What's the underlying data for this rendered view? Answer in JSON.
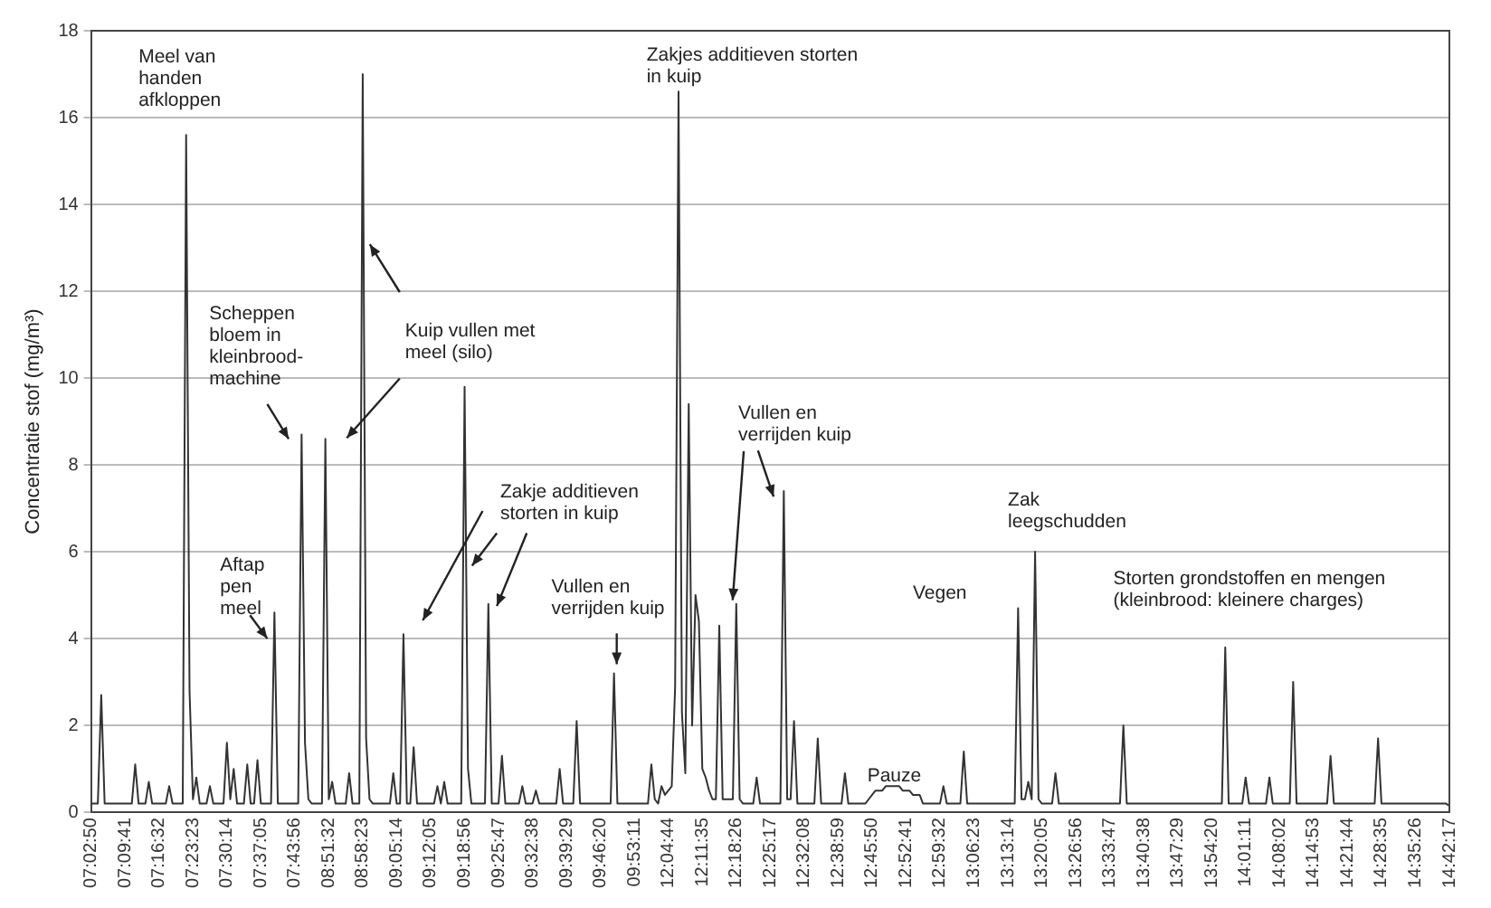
{
  "chart_data": {
    "type": "line",
    "ylabel": "Concentratie stof (mg/m³)",
    "ylim": [
      0,
      18
    ],
    "yticks": [
      0,
      2,
      4,
      6,
      8,
      10,
      12,
      14,
      16,
      18
    ],
    "categories": [
      "07:02:50",
      null,
      null,
      null,
      null,
      null,
      null,
      null,
      null,
      null,
      "07:09:41",
      null,
      null,
      null,
      null,
      null,
      null,
      null,
      null,
      null,
      "07:16:32",
      null,
      null,
      null,
      null,
      null,
      null,
      null,
      null,
      null,
      "07:23:23",
      null,
      null,
      null,
      null,
      null,
      null,
      null,
      null,
      null,
      "07:30:14",
      null,
      null,
      null,
      null,
      null,
      null,
      null,
      null,
      null,
      "07:37:05",
      null,
      null,
      null,
      null,
      null,
      null,
      null,
      null,
      null,
      "07:43:56",
      null,
      null,
      null,
      null,
      null,
      null,
      null,
      null,
      null,
      "08:51:32",
      null,
      null,
      null,
      null,
      null,
      null,
      null,
      null,
      null,
      "08:58:23",
      null,
      null,
      null,
      null,
      null,
      null,
      null,
      null,
      null,
      "09:05:14",
      null,
      null,
      null,
      null,
      null,
      null,
      null,
      null,
      null,
      "09:12:05",
      null,
      null,
      null,
      null,
      null,
      null,
      null,
      null,
      null,
      "09:18:56",
      null,
      null,
      null,
      null,
      null,
      null,
      null,
      null,
      null,
      "09:25:47",
      null,
      null,
      null,
      null,
      null,
      null,
      null,
      null,
      null,
      "09:32:38",
      null,
      null,
      null,
      null,
      null,
      null,
      null,
      null,
      null,
      "09:39:29",
      null,
      null,
      null,
      null,
      null,
      null,
      null,
      null,
      null,
      "09:46:20",
      null,
      null,
      null,
      null,
      null,
      null,
      null,
      null,
      null,
      "09:53:11",
      null,
      null,
      null,
      null,
      null,
      null,
      null,
      null,
      null,
      "12:04:44",
      null,
      null,
      null,
      null,
      null,
      null,
      null,
      null,
      null,
      "12:11:35",
      null,
      null,
      null,
      null,
      null,
      null,
      null,
      null,
      null,
      "12:18:26",
      null,
      null,
      null,
      null,
      null,
      null,
      null,
      null,
      null,
      "12:25:17",
      null,
      null,
      null,
      null,
      null,
      null,
      null,
      null,
      null,
      "12:32:08",
      null,
      null,
      null,
      null,
      null,
      null,
      null,
      null,
      null,
      "12:38:59",
      null,
      null,
      null,
      null,
      null,
      null,
      null,
      null,
      null,
      "12:45:50",
      null,
      null,
      null,
      null,
      null,
      null,
      null,
      null,
      null,
      "12:52:41",
      null,
      null,
      null,
      null,
      null,
      null,
      null,
      null,
      null,
      "12:59:32",
      null,
      null,
      null,
      null,
      null,
      null,
      null,
      null,
      null,
      "13:06:23",
      null,
      null,
      null,
      null,
      null,
      null,
      null,
      null,
      null,
      "13:13:14",
      null,
      null,
      null,
      null,
      null,
      null,
      null,
      null,
      null,
      "13:20:05",
      null,
      null,
      null,
      null,
      null,
      null,
      null,
      null,
      null,
      "13:26:56",
      null,
      null,
      null,
      null,
      null,
      null,
      null,
      null,
      null,
      "13:33:47",
      null,
      null,
      null,
      null,
      null,
      null,
      null,
      null,
      null,
      "13:40:38",
      null,
      null,
      null,
      null,
      null,
      null,
      null,
      null,
      null,
      "13:47:29",
      null,
      null,
      null,
      null,
      null,
      null,
      null,
      null,
      null,
      "13:54:20",
      null,
      null,
      null,
      null,
      null,
      null,
      null,
      null,
      null,
      "14:01:11",
      null,
      null,
      null,
      null,
      null,
      null,
      null,
      null,
      null,
      "14:08:02",
      null,
      null,
      null,
      null,
      null,
      null,
      null,
      null,
      null,
      "14:14:53",
      null,
      null,
      null,
      null,
      null,
      null,
      null,
      null,
      null,
      "14:21:44",
      null,
      null,
      null,
      null,
      null,
      null,
      null,
      null,
      null,
      "14:28:35",
      null,
      null,
      null,
      null,
      null,
      null,
      null,
      null,
      null,
      "14:35:26",
      null,
      null,
      null,
      null,
      null,
      null,
      null,
      null,
      null,
      "14:42:17"
    ],
    "grid": "y",
    "marker": "none",
    "line_style": "solid",
    "series": [
      {
        "color": "#333333",
        "values": [
          0.2,
          0.2,
          0.2,
          2.7,
          0.2,
          0.2,
          0.2,
          0.2,
          0.2,
          0.2,
          0.2,
          0.2,
          0.2,
          1.1,
          0.2,
          0.2,
          0.2,
          0.7,
          0.2,
          0.2,
          0.2,
          0.2,
          0.2,
          0.6,
          0.2,
          0.2,
          0.2,
          0.2,
          15.6,
          2.8,
          0.3,
          0.8,
          0.2,
          0.2,
          0.2,
          0.6,
          0.2,
          0.2,
          0.2,
          0.2,
          1.6,
          0.3,
          1.0,
          0.2,
          0.2,
          0.2,
          1.1,
          0.2,
          0.2,
          1.2,
          0.2,
          0.2,
          0.2,
          0.2,
          4.6,
          0.2,
          0.2,
          0.2,
          0.2,
          0.2,
          0.2,
          0.2,
          8.7,
          1.6,
          0.3,
          0.2,
          0.2,
          0.2,
          0.2,
          8.6,
          0.3,
          0.7,
          0.2,
          0.2,
          0.2,
          0.2,
          0.9,
          0.2,
          0.2,
          0.2,
          17.0,
          1.7,
          0.3,
          0.2,
          0.2,
          0.2,
          0.2,
          0.2,
          0.2,
          0.9,
          0.2,
          0.2,
          4.1,
          0.2,
          0.2,
          1.5,
          0.2,
          0.2,
          0.2,
          0.2,
          0.2,
          0.2,
          0.6,
          0.2,
          0.7,
          0.2,
          0.2,
          0.2,
          0.2,
          0.2,
          9.8,
          1.0,
          0.2,
          0.2,
          0.2,
          0.2,
          0.2,
          4.8,
          0.2,
          0.2,
          0.2,
          1.3,
          0.2,
          0.2,
          0.2,
          0.2,
          0.2,
          0.6,
          0.2,
          0.2,
          0.2,
          0.5,
          0.2,
          0.2,
          0.2,
          0.2,
          0.2,
          0.2,
          1.0,
          0.2,
          0.2,
          0.2,
          0.2,
          2.1,
          0.2,
          0.2,
          0.2,
          0.2,
          0.2,
          0.2,
          0.2,
          0.2,
          0.2,
          0.2,
          3.2,
          0.2,
          0.2,
          0.2,
          0.2,
          0.2,
          0.2,
          0.2,
          0.2,
          0.2,
          0.2,
          1.1,
          0.3,
          0.2,
          0.6,
          0.4,
          0.5,
          0.6,
          2.9,
          16.6,
          2.3,
          0.9,
          9.4,
          2.0,
          5.0,
          4.4,
          1.0,
          0.8,
          0.5,
          0.3,
          0.3,
          4.3,
          0.3,
          0.3,
          0.3,
          0.3,
          4.8,
          0.3,
          0.2,
          0.2,
          0.2,
          0.2,
          0.8,
          0.2,
          0.2,
          0.2,
          0.2,
          0.2,
          0.2,
          0.2,
          7.4,
          0.3,
          0.3,
          2.1,
          0.2,
          0.2,
          0.2,
          0.2,
          0.2,
          0.2,
          1.7,
          0.2,
          0.2,
          0.2,
          0.2,
          0.2,
          0.2,
          0.2,
          0.9,
          0.2,
          0.2,
          0.2,
          0.2,
          0.2,
          0.2,
          0.3,
          0.4,
          0.5,
          0.5,
          0.5,
          0.6,
          0.6,
          0.6,
          0.6,
          0.6,
          0.5,
          0.5,
          0.5,
          0.4,
          0.4,
          0.4,
          0.2,
          0.2,
          0.2,
          0.2,
          0.2,
          0.2,
          0.6,
          0.2,
          0.2,
          0.2,
          0.2,
          0.2,
          1.4,
          0.2,
          0.2,
          0.2,
          0.2,
          0.2,
          0.2,
          0.2,
          0.2,
          0.2,
          0.2,
          0.2,
          0.2,
          0.2,
          0.2,
          0.2,
          4.7,
          0.3,
          0.3,
          0.7,
          0.3,
          6.0,
          0.3,
          0.2,
          0.2,
          0.2,
          0.2,
          0.9,
          0.2,
          0.2,
          0.2,
          0.2,
          0.2,
          0.2,
          0.2,
          0.2,
          0.2,
          0.2,
          0.2,
          0.2,
          0.2,
          0.2,
          0.2,
          0.2,
          0.2,
          0.2,
          0.2,
          2.0,
          0.2,
          0.2,
          0.2,
          0.2,
          0.2,
          0.2,
          0.2,
          0.2,
          0.2,
          0.2,
          0.2,
          0.2,
          0.2,
          0.2,
          0.2,
          0.2,
          0.2,
          0.2,
          0.2,
          0.2,
          0.2,
          0.2,
          0.2,
          0.2,
          0.2,
          0.2,
          0.2,
          0.2,
          0.2,
          3.8,
          0.2,
          0.2,
          0.2,
          0.2,
          0.2,
          0.8,
          0.2,
          0.2,
          0.2,
          0.2,
          0.2,
          0.2,
          0.8,
          0.2,
          0.2,
          0.2,
          0.2,
          0.2,
          0.2,
          3.0,
          0.2,
          0.2,
          0.2,
          0.2,
          0.2,
          0.2,
          0.2,
          0.2,
          0.2,
          0.2,
          1.3,
          0.2,
          0.2,
          0.2,
          0.2,
          0.2,
          0.2,
          0.2,
          0.2,
          0.2,
          0.2,
          0.2,
          0.2,
          0.2,
          1.7,
          0.2,
          0.2,
          0.2,
          0.2,
          0.2,
          0.2,
          0.2,
          0.2,
          0.2,
          0.2,
          0.2,
          0.2,
          0.2,
          0.2,
          0.2,
          0.2,
          0.2,
          0.2,
          0.2,
          0.2,
          0.15
        ]
      }
    ],
    "annotations": [
      "Meel van\nhanden\nafkloppen",
      "Zakjes additieven storten\nin kuip",
      "Scheppen\nbloem in\nkleinbrood-\nmachine",
      "Kuip vullen met\nmeel (silo)",
      "Zakje additieven\nstorten in kuip",
      "Aftap\npen\nmeel",
      "Vullen en\nverrijden kuip",
      {
        "text": "Vullen en\nverrijden kuip",
        "x": "12:18:26",
        "y": 4.8
      },
      "Pauze",
      "Vegen",
      "Zak\nleegschudden",
      "Storten grondstoffen en mengen\n(kleinbrood: kleinere charges)"
    ]
  }
}
